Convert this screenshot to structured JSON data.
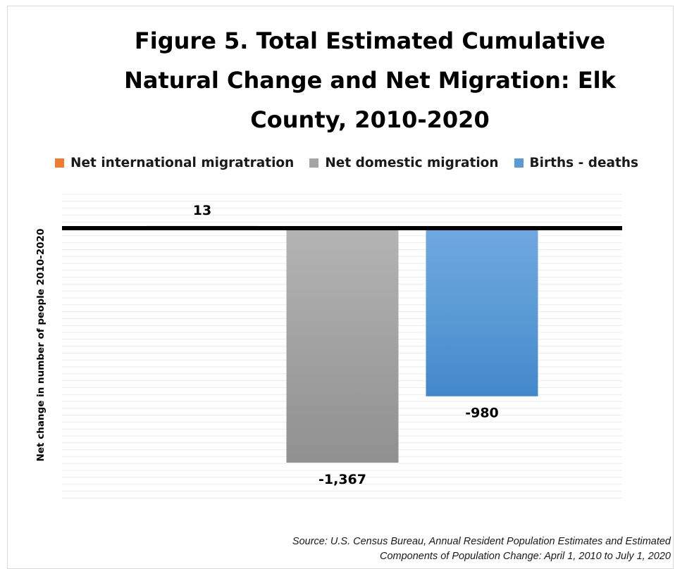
{
  "title": "Figure 5. Total Estimated Cumulative Natural Change and Net Migration:  Elk County, 2010-2020",
  "source": "Source: U.S. Census Bureau, Annual Resident Population Estimates and Estimated Components of Population Change: April 1, 2010 to July 1, 2020",
  "chart_data": {
    "type": "bar",
    "title": "Figure 5. Total Estimated Cumulative Natural Change and Net Migration:  Elk County, 2010-2020",
    "xlabel": "",
    "ylabel": "Net change in number of people 2010-2020",
    "grid": true,
    "legend_position": "top",
    "axis_range_y": [
      -1600,
      200
    ],
    "series": [
      {
        "name": "Net international migratration",
        "value": 13,
        "label": "13",
        "color": "#ED7D31"
      },
      {
        "name": "Net domestic migration",
        "value": -1367,
        "label": "-1,367",
        "color": "#A5A5A5"
      },
      {
        "name": "Births  - deaths",
        "value": -980,
        "label": "-980",
        "color": "#5B9BD5"
      }
    ]
  }
}
